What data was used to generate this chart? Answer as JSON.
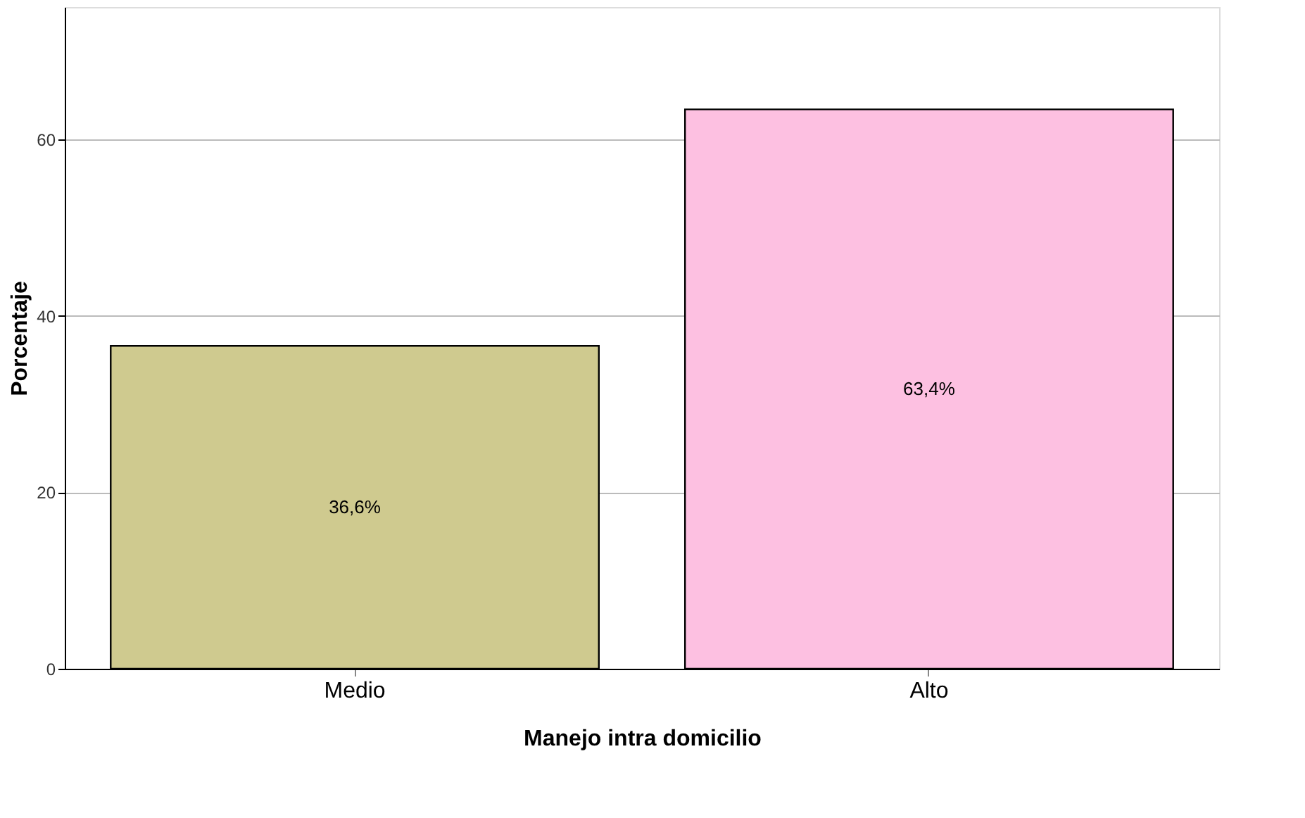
{
  "chart_data": {
    "type": "bar",
    "xlabel": "Manejo intra domicilio",
    "ylabel": "Porcentaje",
    "categories": [
      "Medio",
      "Alto"
    ],
    "values": [
      36.6,
      63.4
    ],
    "colors": [
      "#cfca8f",
      "#fdc0e1"
    ],
    "value_labels": [
      "36,6%",
      "63,4%"
    ],
    "ylim": [
      0,
      75
    ],
    "yticks": [
      0,
      20,
      40,
      60
    ],
    "grid": "y"
  }
}
